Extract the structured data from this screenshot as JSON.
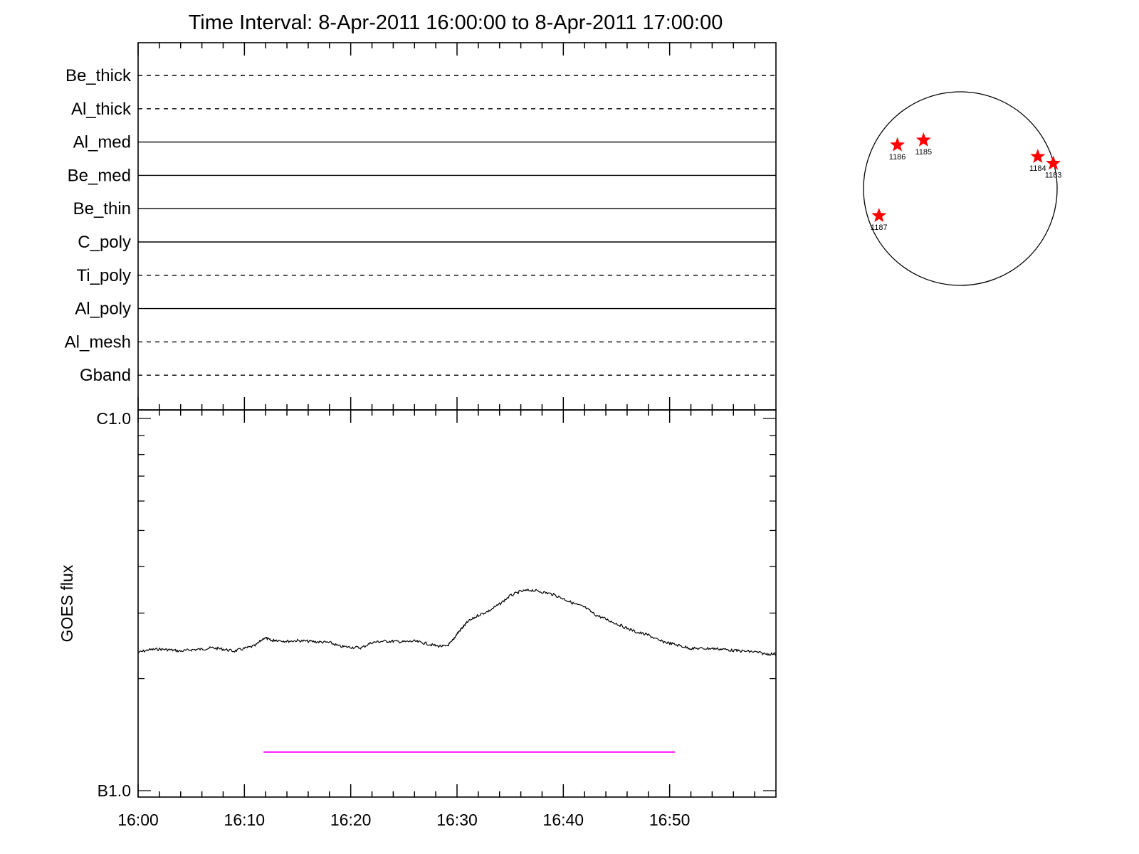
{
  "title": "Time Interval:  8-Apr-2011 16:00:00 to  8-Apr-2011 17:00:00",
  "colors": {
    "flux_line": "#000000",
    "interval_bar": "#ff00ff",
    "active_region_star": "#ff0000",
    "solar_disk": "#000000"
  },
  "chart_data": [
    {
      "type": "line",
      "panel": "detector filters",
      "x_range": [
        "16:00",
        "17:00"
      ],
      "series": [
        {
          "name": "Be_thick",
          "style": "dashed"
        },
        {
          "name": "Al_thick",
          "style": "dashed"
        },
        {
          "name": "Al_med",
          "style": "solid"
        },
        {
          "name": "Be_med",
          "style": "solid"
        },
        {
          "name": "Be_thin",
          "style": "solid"
        },
        {
          "name": "C_poly",
          "style": "solid"
        },
        {
          "name": "Ti_poly",
          "style": "dashed"
        },
        {
          "name": "Al_poly",
          "style": "solid"
        },
        {
          "name": "Al_mesh",
          "style": "dashed"
        },
        {
          "name": "Gband",
          "style": "dashed"
        }
      ]
    },
    {
      "type": "line",
      "panel": "GOES",
      "ylabel": "GOES flux",
      "y_scale": "log",
      "y_ticks": [
        "B1.0",
        "C1.0"
      ],
      "yrange_watts_per_m2": [
        1e-07,
        1e-06
      ],
      "x_ticks": [
        "16:00",
        "16:10",
        "16:20",
        "16:30",
        "16:40",
        "16:50"
      ],
      "x_range_minutes": [
        0,
        60
      ],
      "series": [
        {
          "x_minutes": [
            0,
            1,
            2,
            3,
            4,
            5,
            6,
            7,
            8,
            9,
            10,
            11,
            11.9,
            12.5,
            13,
            14,
            15,
            16,
            17,
            18,
            19,
            20,
            21,
            22,
            23,
            24,
            25,
            26,
            27,
            28,
            29,
            29.5,
            30,
            30.5,
            31,
            32,
            33,
            34,
            35,
            36,
            37,
            38,
            39,
            40,
            41,
            42,
            43,
            44,
            45,
            46,
            47,
            48,
            49,
            50,
            51,
            52,
            53,
            54,
            55,
            56,
            57,
            58,
            59,
            60
          ],
          "y": [
            2.35e-07,
            2.39e-07,
            2.4e-07,
            2.39e-07,
            2.37e-07,
            2.39e-07,
            2.4e-07,
            2.42e-07,
            2.4e-07,
            2.37e-07,
            2.41e-07,
            2.45e-07,
            2.58e-07,
            2.53e-07,
            2.54e-07,
            2.52e-07,
            2.53e-07,
            2.52e-07,
            2.51e-07,
            2.5e-07,
            2.44e-07,
            2.43e-07,
            2.42e-07,
            2.5e-07,
            2.52e-07,
            2.52e-07,
            2.51e-07,
            2.52e-07,
            2.49e-07,
            2.45e-07,
            2.44e-07,
            2.51e-07,
            2.64e-07,
            2.74e-07,
            2.84e-07,
            2.96e-07,
            3.04e-07,
            3.17e-07,
            3.34e-07,
            3.43e-07,
            3.46e-07,
            3.42e-07,
            3.37e-07,
            3.28e-07,
            3.18e-07,
            3.11e-07,
            2.97e-07,
            2.89e-07,
            2.81e-07,
            2.73e-07,
            2.66e-07,
            2.62e-07,
            2.53e-07,
            2.49e-07,
            2.45e-07,
            2.41e-07,
            2.41e-07,
            2.41e-07,
            2.4e-07,
            2.38e-07,
            2.37e-07,
            2.36e-07,
            2.33e-07,
            2.33e-07
          ]
        }
      ],
      "interval_bar": {
        "x_minutes": [
          11.8,
          50.5
        ],
        "y": 1.27e-07
      }
    },
    {
      "type": "scatter",
      "panel": "solar disk map",
      "points": [
        {
          "label": "1186",
          "x": -0.65,
          "y": 0.45
        },
        {
          "label": "1185",
          "x": -0.38,
          "y": 0.5
        },
        {
          "label": "1184",
          "x": 0.8,
          "y": 0.33
        },
        {
          "label": "1183",
          "x": 0.96,
          "y": 0.26
        },
        {
          "label": "1187",
          "x": -0.84,
          "y": -0.28
        }
      ]
    }
  ]
}
